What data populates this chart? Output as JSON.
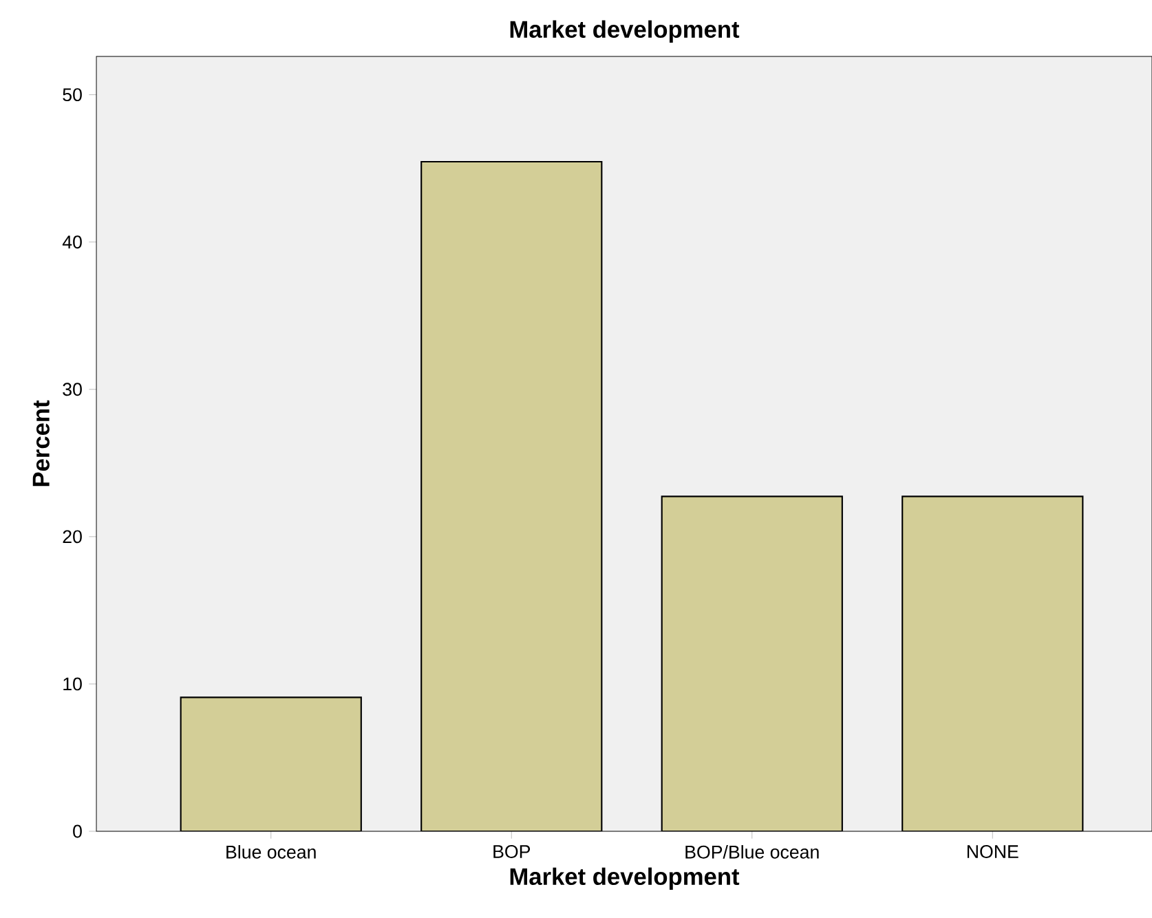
{
  "chart_data": {
    "type": "bar",
    "title": "Market development",
    "xlabel": "Market development",
    "ylabel": "Percent",
    "categories": [
      "Blue ocean",
      "BOP",
      "BOP/Blue ocean",
      "NONE"
    ],
    "values": [
      9.09,
      45.45,
      22.73,
      22.73
    ],
    "color": "#d3ce97",
    "ylim": [
      0,
      52.6
    ],
    "yticks": [
      0,
      10,
      20,
      30,
      40,
      50
    ],
    "grid": false
  }
}
